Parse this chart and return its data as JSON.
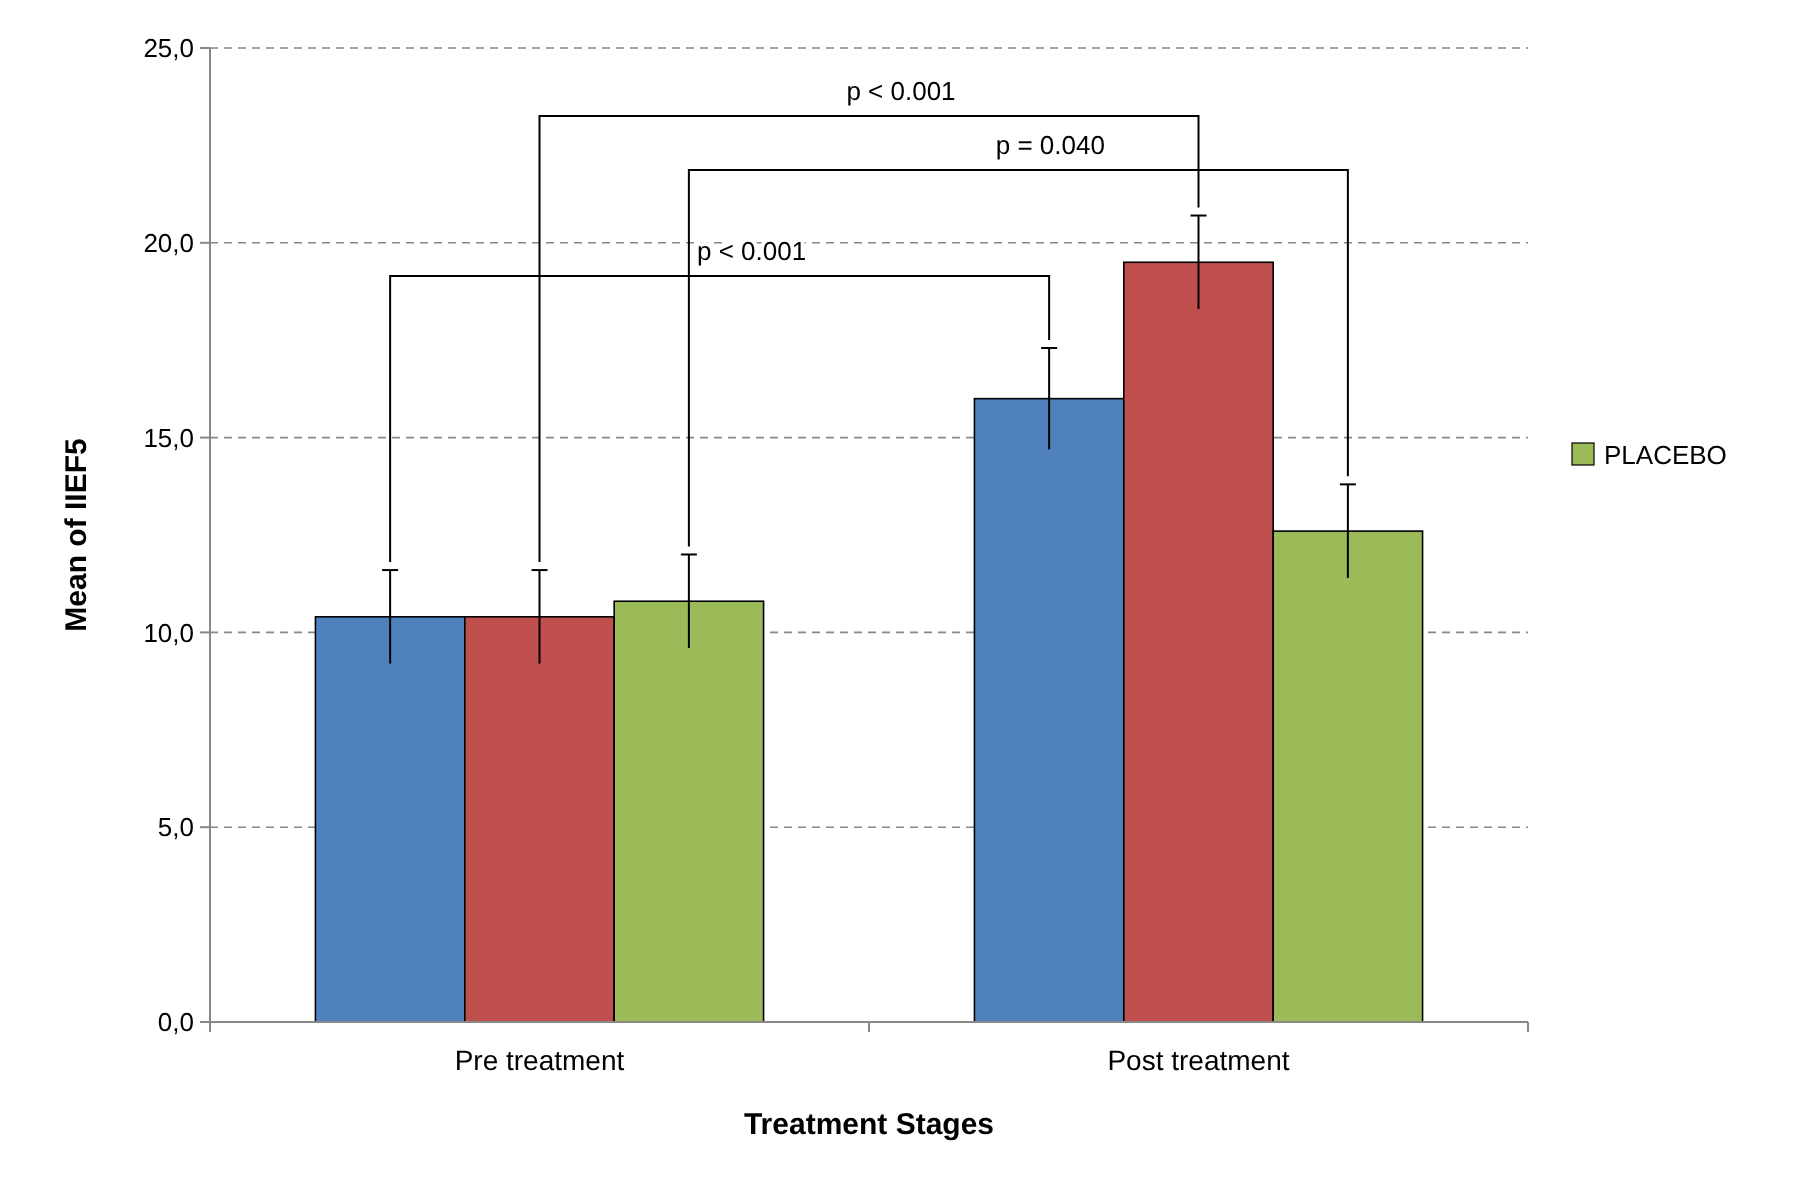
{
  "chart_data": {
    "type": "bar",
    "xlabel": "Treatment Stages",
    "ylabel": "Mean of IIEF5",
    "categories": [
      "Pre treatment",
      "Post treatment"
    ],
    "series": [
      {
        "color": "#4f81bd",
        "values": [
          10.4,
          16.0
        ],
        "errors": [
          1.2,
          1.3
        ]
      },
      {
        "color": "#c0504d",
        "values": [
          10.4,
          19.5
        ],
        "errors": [
          1.2,
          1.2
        ]
      },
      {
        "name": "PLACEBO",
        "color": "#9bbb59",
        "values": [
          10.8,
          12.6
        ],
        "errors": [
          1.2,
          1.2
        ]
      }
    ],
    "ylim": [
      0,
      25
    ],
    "yticks": [
      {
        "value": 0,
        "label": "0,0"
      },
      {
        "value": 5,
        "label": "5,0"
      },
      {
        "value": 10,
        "label": "10,0"
      },
      {
        "value": 15,
        "label": "15,0"
      },
      {
        "value": 20,
        "label": "20,0"
      },
      {
        "value": 25,
        "label": "25,0"
      }
    ],
    "grid": "y",
    "legend": "right",
    "annotations": [
      "p < 0.001",
      "p = 0.040",
      "p < 0.001"
    ]
  }
}
